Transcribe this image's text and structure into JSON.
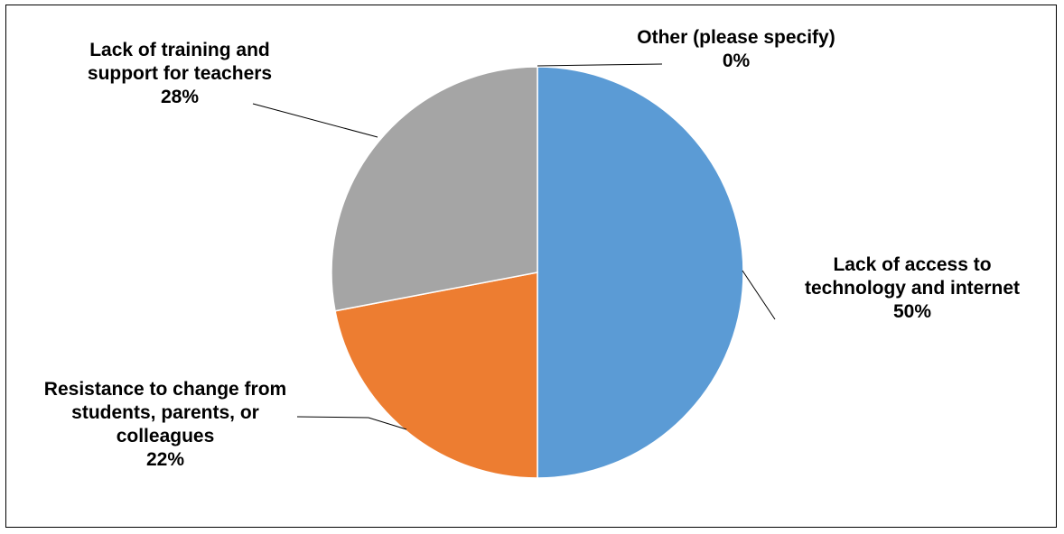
{
  "chart_data": {
    "type": "pie",
    "title": "",
    "slices": [
      {
        "label_lines": [
          "Lack of access to",
          "technology and internet"
        ],
        "percent_label": "50%",
        "value": 50,
        "color": "#5B9BD5"
      },
      {
        "label_lines": [
          "Resistance to change from",
          "students, parents, or",
          "colleagues"
        ],
        "percent_label": "22%",
        "value": 22,
        "color": "#ED7D31"
      },
      {
        "label_lines": [
          "Lack of training and",
          "support for teachers"
        ],
        "percent_label": "28%",
        "value": 28,
        "color": "#A5A5A5"
      },
      {
        "label_lines": [
          "Other (please specify)"
        ],
        "percent_label": "0%",
        "value": 0,
        "color": "#FFC000"
      }
    ],
    "start_angle": "12 o'clock",
    "direction": "clockwise",
    "legend": "none",
    "data_labels": "outside with leader lines"
  }
}
